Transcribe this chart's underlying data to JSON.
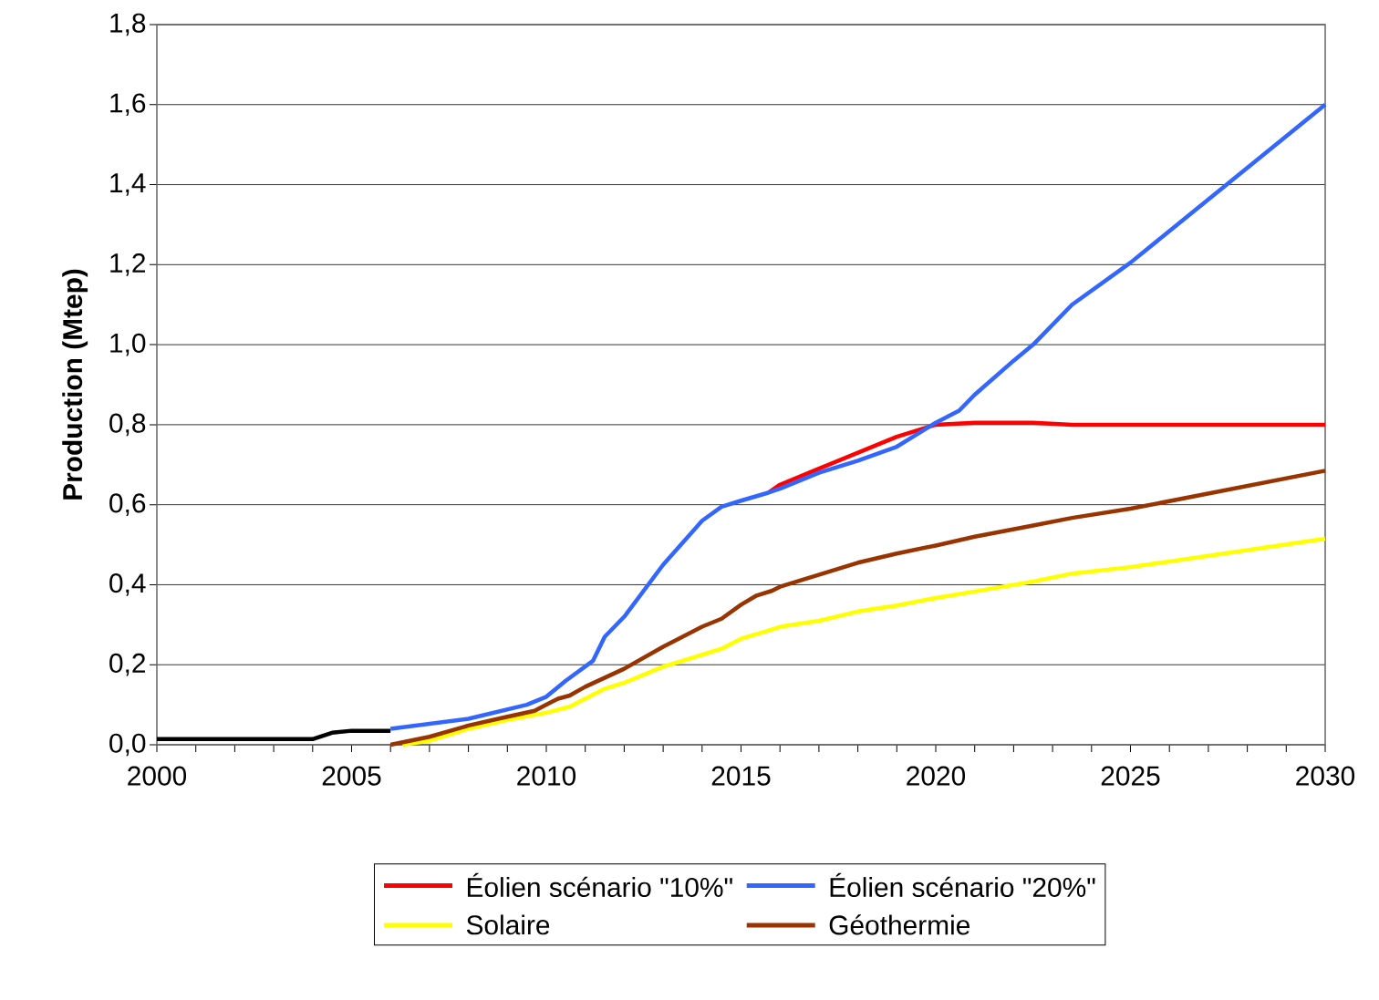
{
  "chart_data": {
    "type": "line",
    "ylabel": "Production (Mtep)",
    "xlim": [
      2000,
      2030
    ],
    "ylim": [
      0,
      1.8
    ],
    "xticks": [
      2000,
      {
        "value": 2001,
        "label": null
      },
      {
        "value": 2002,
        "label": null
      },
      {
        "value": 2003,
        "label": null
      },
      {
        "value": 2004,
        "label": null
      },
      2005,
      {
        "value": 2006,
        "label": null
      },
      {
        "value": 2007,
        "label": null
      },
      {
        "value": 2008,
        "label": null
      },
      {
        "value": 2009,
        "label": null
      },
      2010,
      {
        "value": 2011,
        "label": null
      },
      {
        "value": 2012,
        "label": null
      },
      {
        "value": 2013,
        "label": null
      },
      {
        "value": 2014,
        "label": null
      },
      2015,
      {
        "value": 2016,
        "label": null
      },
      {
        "value": 2017,
        "label": null
      },
      {
        "value": 2018,
        "label": null
      },
      {
        "value": 2019,
        "label": null
      },
      2020,
      {
        "value": 2021,
        "label": null
      },
      {
        "value": 2022,
        "label": null
      },
      {
        "value": 2023,
        "label": null
      },
      {
        "value": 2024,
        "label": null
      },
      2025,
      {
        "value": 2026,
        "label": null
      },
      {
        "value": 2027,
        "label": null
      },
      {
        "value": 2028,
        "label": null
      },
      {
        "value": 2029,
        "label": null
      },
      2030
    ],
    "yticks": [
      {
        "value": 0,
        "label": "0,0"
      },
      {
        "value": 0.2,
        "label": "0,2"
      },
      {
        "value": 0.4,
        "label": "0,4"
      },
      {
        "value": 0.6,
        "label": "0,6"
      },
      {
        "value": 0.8,
        "label": "0,8"
      },
      {
        "value": 1.0,
        "label": "1,0"
      },
      {
        "value": 1.2,
        "label": "1,2"
      },
      {
        "value": 1.4,
        "label": "1,4"
      },
      {
        "value": 1.6,
        "label": "1,6"
      },
      {
        "value": 1.8,
        "label": "1,8"
      }
    ],
    "grid": "y",
    "legend": "bottom",
    "marker": "none",
    "line_style": "solid",
    "series": [
      {
        "color": "#000000",
        "x": [
          2000,
          2001,
          2002,
          2003,
          2004,
          2004.5,
          2005,
          2006
        ],
        "values": [
          0.014,
          0.014,
          0.014,
          0.014,
          0.014,
          0.03,
          0.035,
          0.035
        ]
      },
      {
        "name": "Éolien scénario \"10%\"",
        "color": "#ff0000",
        "x": [
          2015.7,
          2016,
          2017,
          2018,
          2019,
          2020,
          2021,
          2022.5,
          2023.5,
          2025,
          2030
        ],
        "values": [
          0.63,
          0.65,
          0.69,
          0.73,
          0.77,
          0.8,
          0.805,
          0.805,
          0.8,
          0.8,
          0.8
        ]
      },
      {
        "name": "Éolien scénario \"20%\"",
        "color": "#3366ff",
        "x": [
          2006,
          2008,
          2009.5,
          2010,
          2010.5,
          2011.2,
          2011.5,
          2012,
          2013,
          2014,
          2014.5,
          2015,
          2015.7,
          2016,
          2017,
          2018,
          2019,
          2019.5,
          2020,
          2020.6,
          2021,
          2022,
          2022.5,
          2023.5,
          2025,
          2030
        ],
        "values": [
          0.04,
          0.065,
          0.1,
          0.12,
          0.16,
          0.21,
          0.27,
          0.32,
          0.45,
          0.56,
          0.595,
          0.61,
          0.63,
          0.64,
          0.68,
          0.71,
          0.745,
          0.775,
          0.805,
          0.835,
          0.875,
          0.96,
          1.0,
          1.1,
          1.205,
          1.6
        ]
      },
      {
        "name": "Solaire",
        "color": "#ffff00",
        "x": [
          2006.3,
          2007,
          2008,
          2009,
          2010,
          2010.6,
          2011,
          2011.5,
          2012,
          2013,
          2014,
          2014.5,
          2015,
          2015.7,
          2016,
          2017,
          2018,
          2019,
          2020,
          2021,
          2022.5,
          2023.5,
          2025,
          2030
        ],
        "values": [
          0,
          0.01,
          0.04,
          0.062,
          0.08,
          0.095,
          0.115,
          0.14,
          0.155,
          0.195,
          0.225,
          0.24,
          0.265,
          0.285,
          0.295,
          0.31,
          0.333,
          0.348,
          0.367,
          0.383,
          0.408,
          0.428,
          0.444,
          0.515
        ]
      },
      {
        "name": "Géothermie",
        "color": "#993300",
        "x": [
          2006,
          2007,
          2008,
          2009,
          2009.7,
          2010,
          2010.3,
          2010.6,
          2011,
          2012,
          2013,
          2014,
          2014.5,
          2015,
          2015.4,
          2015.8,
          2016,
          2017,
          2018,
          2019,
          2020,
          2021,
          2022.5,
          2023.5,
          2025,
          2030
        ],
        "values": [
          0,
          0.02,
          0.048,
          0.07,
          0.085,
          0.1,
          0.115,
          0.123,
          0.145,
          0.19,
          0.245,
          0.295,
          0.315,
          0.35,
          0.373,
          0.385,
          0.395,
          0.425,
          0.455,
          0.478,
          0.498,
          0.52,
          0.548,
          0.567,
          0.59,
          0.685
        ]
      }
    ]
  }
}
